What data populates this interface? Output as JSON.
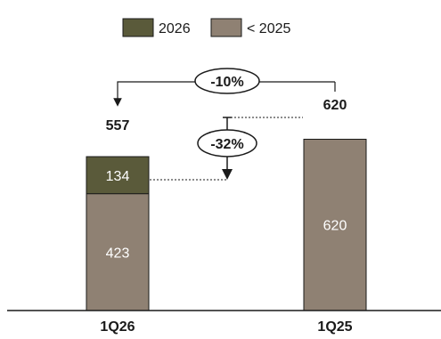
{
  "chart_data": {
    "type": "bar",
    "stacked": true,
    "categories": [
      "1Q26",
      "1Q25"
    ],
    "series": [
      {
        "name": "< 2025",
        "values": [
          423,
          620
        ],
        "color": "#8f8173"
      },
      {
        "name": "2026",
        "values": [
          134,
          0
        ],
        "color": "#5a5a3a"
      }
    ],
    "totals": [
      "557",
      "620"
    ],
    "segment_labels": [
      [
        "423",
        "134"
      ],
      [
        "620"
      ]
    ],
    "ylim": [
      0,
      700
    ],
    "legend_position": "top-center",
    "annotations": {
      "total_change": "-10%",
      "old_series_change": "-32%"
    }
  }
}
